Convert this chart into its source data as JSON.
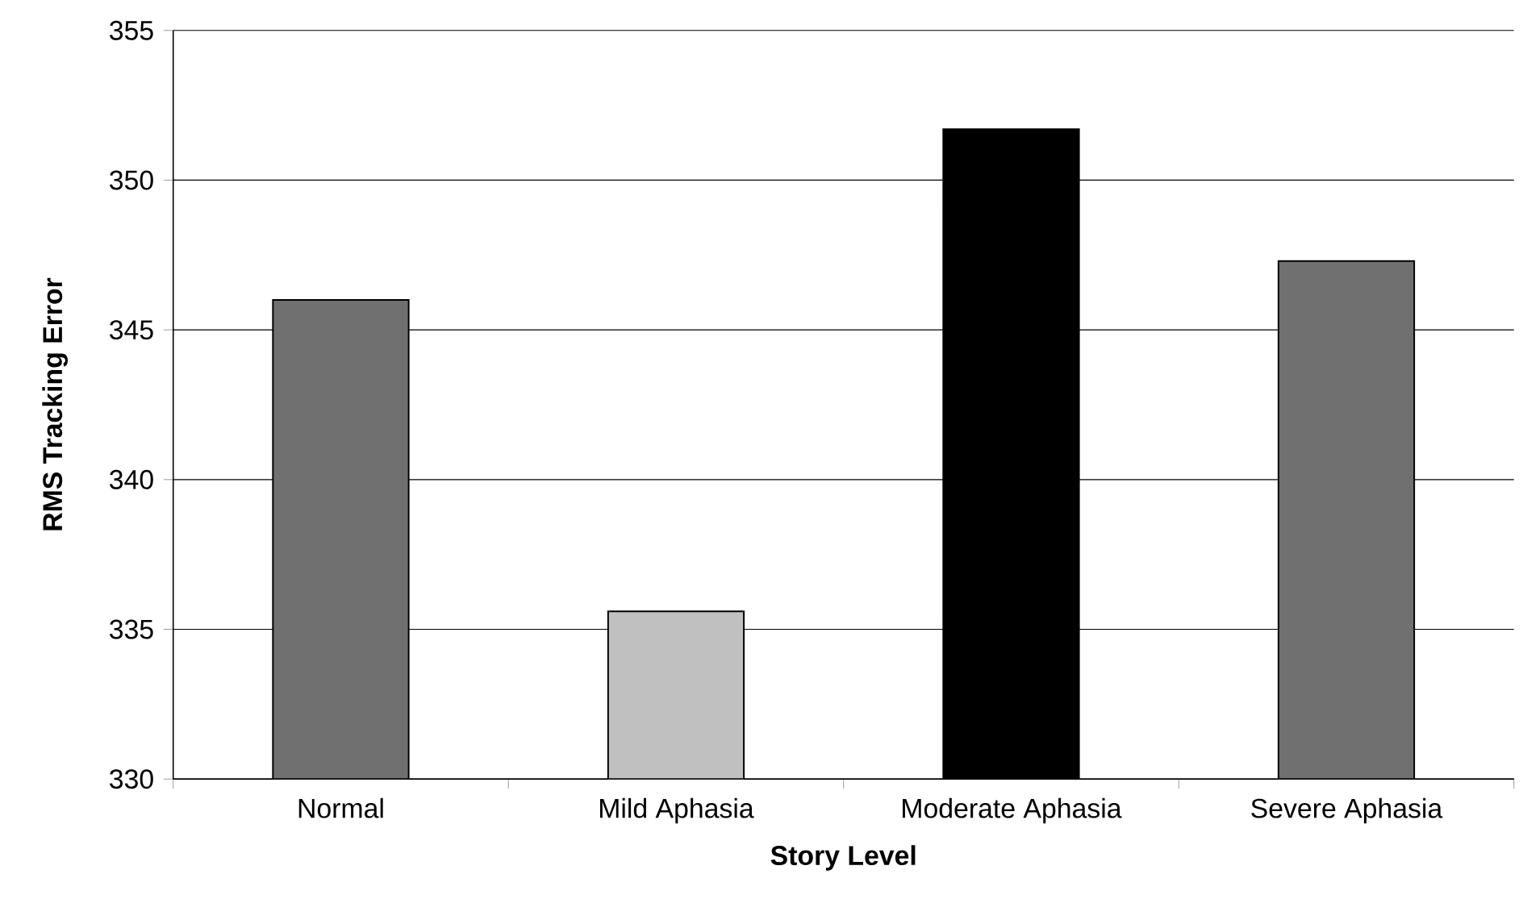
{
  "chart_data": {
    "type": "bar",
    "xlabel": "Story Level",
    "ylabel": "RMS Tracking Error",
    "categories": [
      "Normal",
      "Mild Aphasia",
      "Moderate Aphasia",
      "Severe Aphasia"
    ],
    "values": [
      346.0,
      335.6,
      351.7,
      347.3
    ],
    "colors": [
      "#707070",
      "#c0c0c0",
      "#000000",
      "#707070"
    ],
    "ylim": [
      330,
      355
    ],
    "yticks": [
      330,
      335,
      340,
      345,
      350,
      355
    ],
    "grid": "y"
  }
}
